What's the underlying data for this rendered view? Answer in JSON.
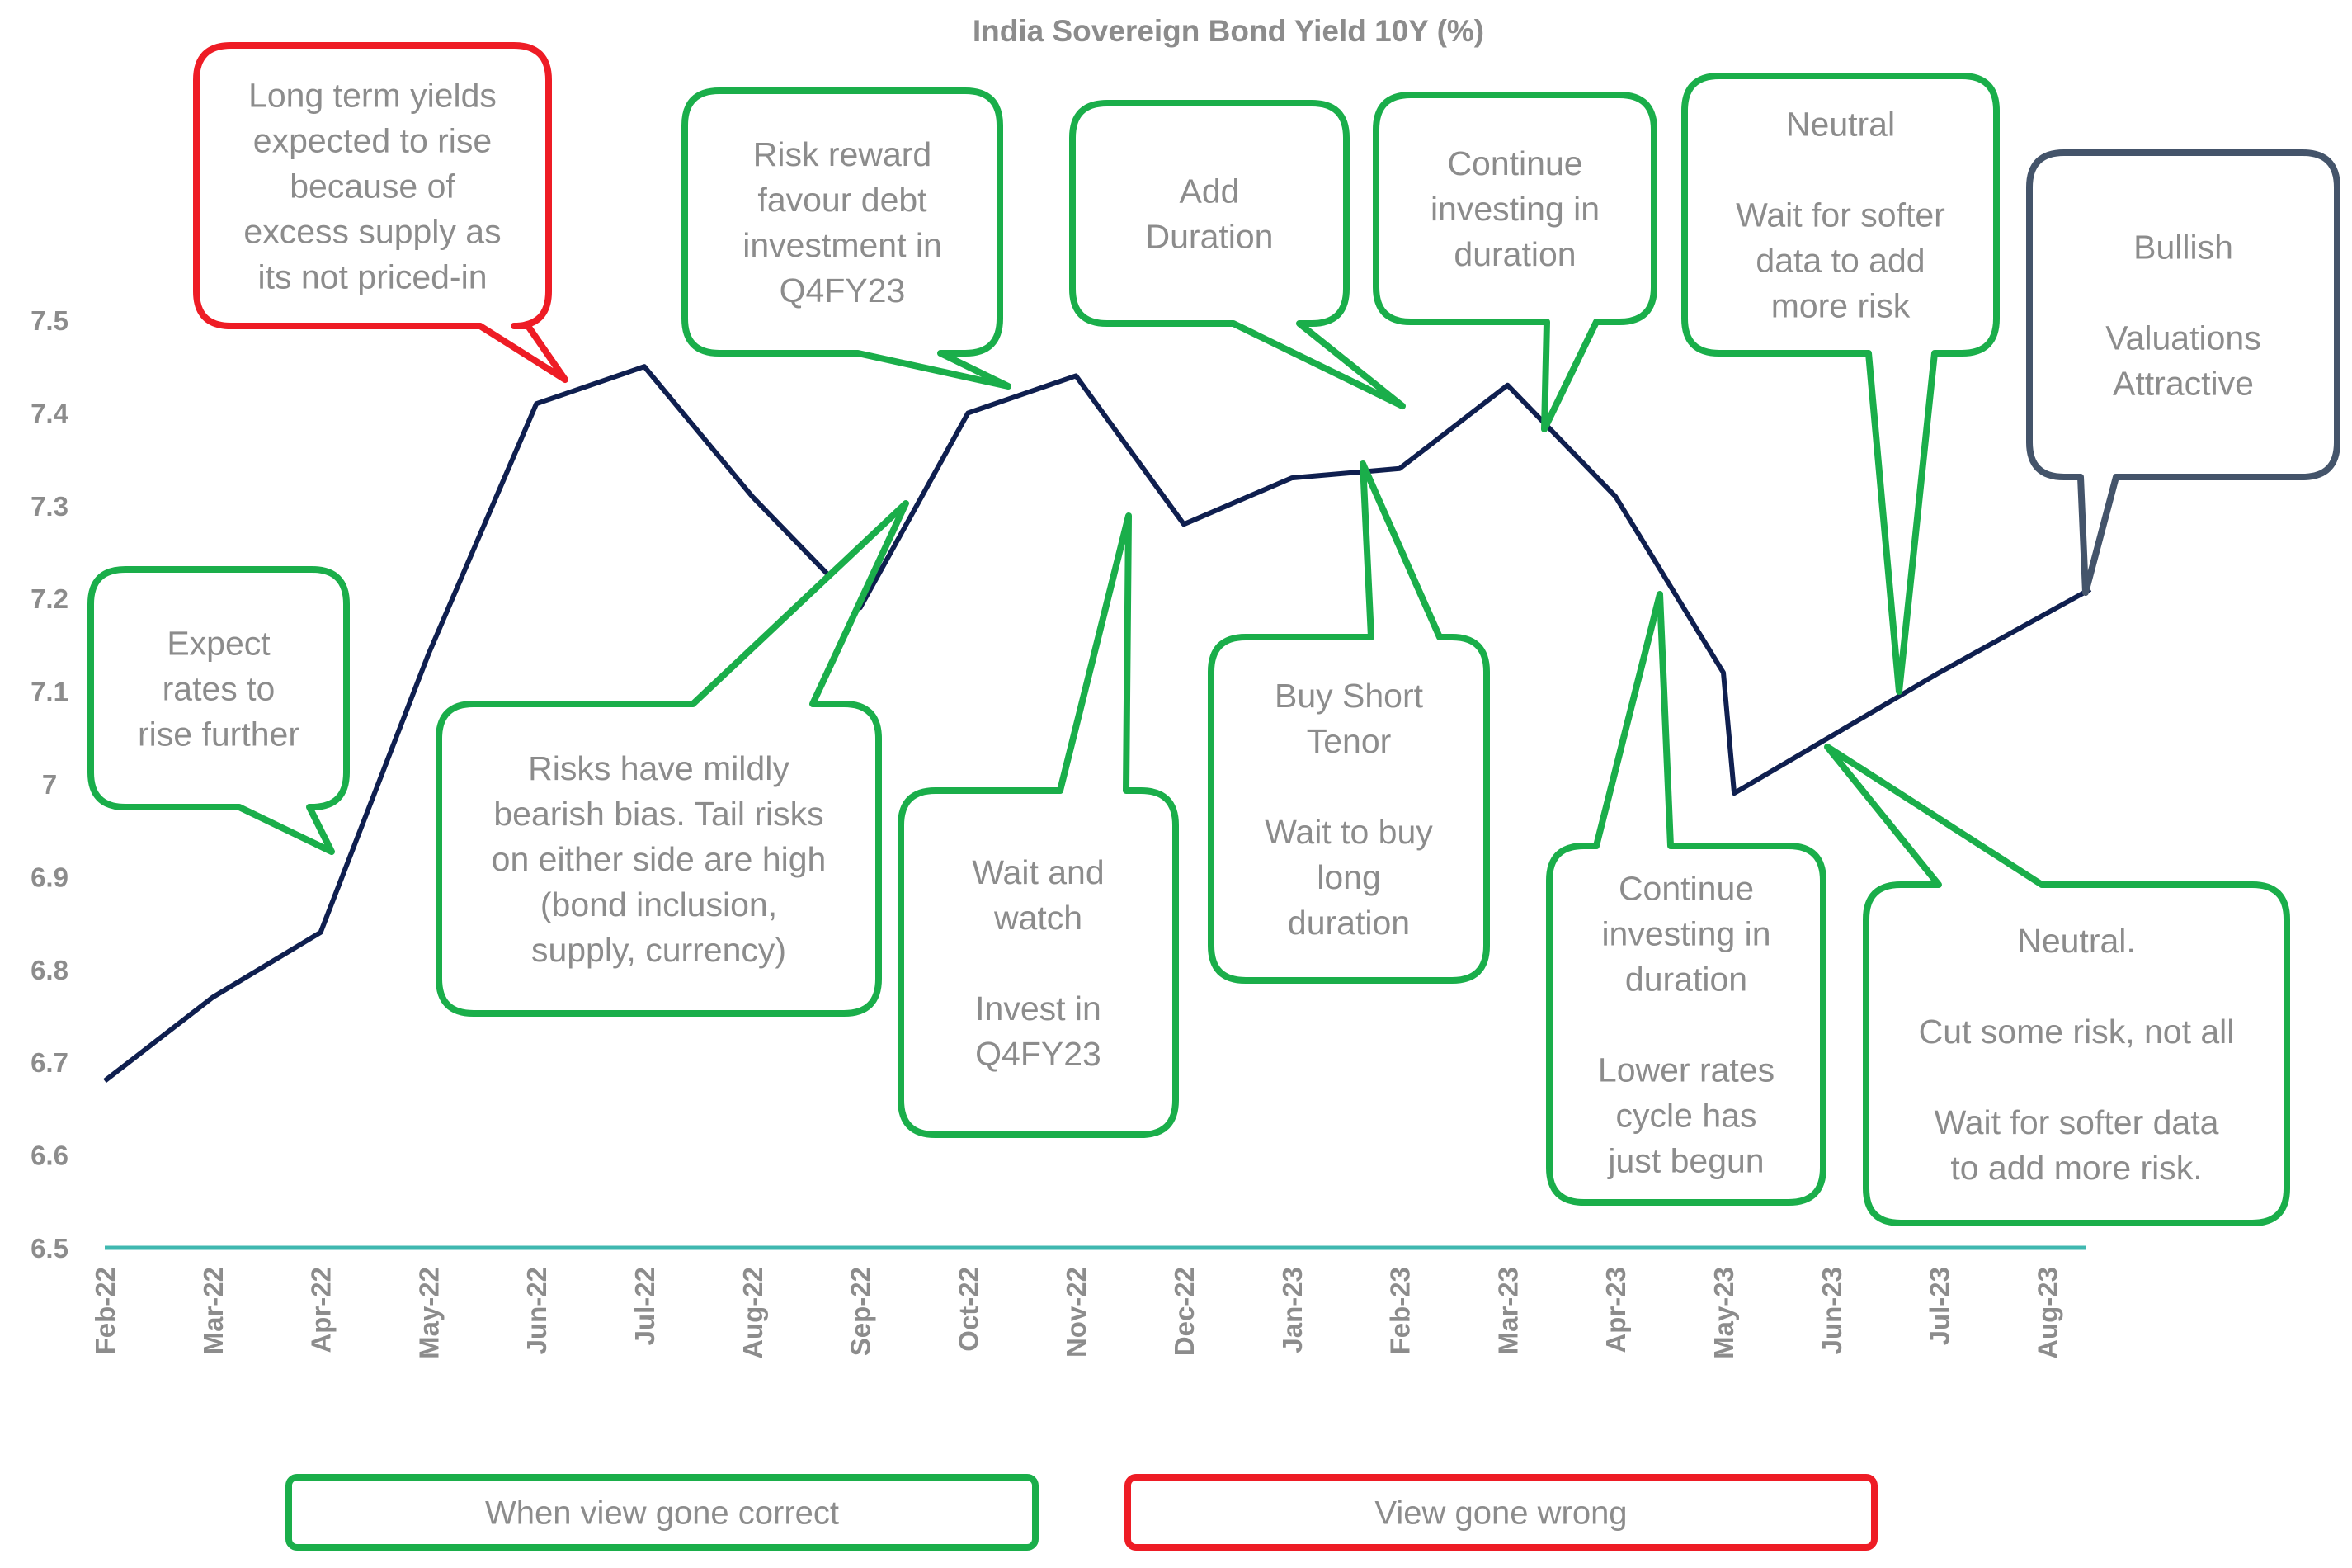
{
  "chart_data": {
    "type": "line",
    "title": "India Sovereign Bond Yield 10Y (%)",
    "xlabel": "",
    "ylabel": "",
    "categories": [
      "Feb-22",
      "Mar-22",
      "Apr-22",
      "May-22",
      "Jun-22",
      "Jul-22",
      "Aug-22",
      "Sep-22",
      "Oct-22",
      "Nov-22",
      "Dec-22",
      "Jan-23",
      "Feb-23",
      "Mar-23",
      "Apr-23",
      "May-23",
      "Jun-23",
      "Jul-23",
      "Aug-23"
    ],
    "series": [
      {
        "name": "",
        "color": "#0f1f4f",
        "points": [
          [
            0,
            6.68
          ],
          [
            1,
            6.77
          ],
          [
            2,
            6.84
          ],
          [
            3,
            7.14
          ],
          [
            4,
            7.41
          ],
          [
            5,
            7.45
          ],
          [
            6,
            7.31
          ],
          [
            7,
            7.19
          ],
          [
            8,
            7.4
          ],
          [
            9,
            7.44
          ],
          [
            10,
            7.28
          ],
          [
            11,
            7.33
          ],
          [
            12,
            7.34
          ],
          [
            13,
            7.43
          ],
          [
            14,
            7.31
          ],
          [
            15,
            7.12
          ],
          [
            15.1,
            6.99
          ],
          [
            17,
            7.12
          ],
          [
            18.4,
            7.21
          ]
        ]
      }
    ],
    "yticks": [
      "6.5",
      "6.6",
      "6.7",
      "6.8",
      "6.9",
      "7",
      "7.1",
      "7.2",
      "7.3",
      "7.4",
      "7.5"
    ],
    "ylim": [
      6.5,
      7.5
    ],
    "grid": false,
    "baseline_color": "#40b8b0",
    "annotations": [
      {
        "id": "c1",
        "style": "wrong",
        "lines": [
          "Long term yields",
          "expected to rise",
          "because of",
          "excess supply as",
          "its not priced-in"
        ]
      },
      {
        "id": "c2",
        "style": "correct",
        "lines": [
          "Expect",
          "rates to",
          "rise further"
        ]
      },
      {
        "id": "c3",
        "style": "correct",
        "lines": [
          "Risk reward",
          "favour debt",
          "investment in",
          "Q4FY23"
        ]
      },
      {
        "id": "c4",
        "style": "correct",
        "lines": [
          "Risks have mildly",
          "bearish bias. Tail risks",
          "on either side are high",
          "(bond inclusion,",
          "supply, currency)"
        ]
      },
      {
        "id": "c5",
        "style": "correct",
        "lines": [
          "Wait and",
          "watch",
          "",
          "Invest in",
          "Q4FY23"
        ]
      },
      {
        "id": "c6",
        "style": "correct",
        "lines": [
          "Add",
          "Duration"
        ]
      },
      {
        "id": "c7",
        "style": "correct",
        "lines": [
          "Buy Short",
          "Tenor",
          "",
          "Wait to buy",
          "long",
          "duration"
        ]
      },
      {
        "id": "c8",
        "style": "correct",
        "lines": [
          "Continue",
          "investing in",
          "duration"
        ]
      },
      {
        "id": "c9",
        "style": "correct",
        "lines": [
          "Continue",
          "investing in",
          "duration",
          "",
          "Lower rates",
          "cycle has",
          "just begun"
        ]
      },
      {
        "id": "c10",
        "style": "correct",
        "lines": [
          "Neutral",
          "",
          "Wait for softer",
          "data to add",
          "more risk"
        ]
      },
      {
        "id": "c11",
        "style": "correct",
        "lines": [
          "Neutral.",
          "",
          "Cut some risk, not all",
          "",
          "Wait for softer data",
          "to add more risk."
        ]
      },
      {
        "id": "c12",
        "style": "neutral",
        "lines": [
          "Bullish",
          "",
          "Valuations",
          "Attractive"
        ]
      }
    ],
    "legend": [
      {
        "label": "When view gone correct",
        "style": "correct"
      },
      {
        "label": "View gone wrong",
        "style": "wrong"
      }
    ],
    "colors": {
      "correct": "#1aae4a",
      "wrong": "#ee1c25",
      "neutral": "#44546a"
    }
  }
}
